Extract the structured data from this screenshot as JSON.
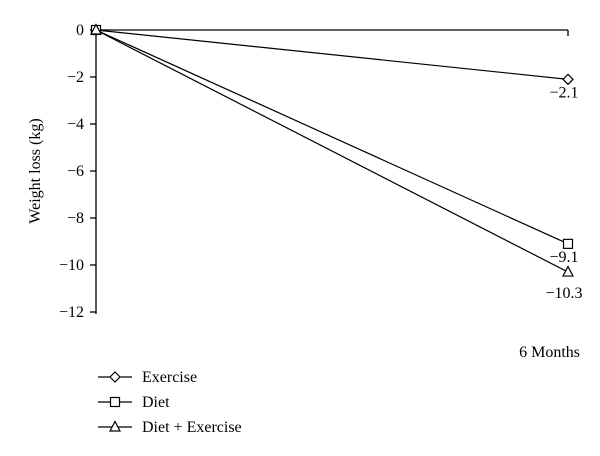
{
  "chart_data": {
    "type": "line",
    "ylabel": "Weight loss (kg)",
    "xlabel": "6 Months",
    "ylim": [
      -12,
      0
    ],
    "yticks": [
      "0",
      "−2",
      "−4",
      "−6",
      "−8",
      "−10",
      "−12"
    ],
    "x": [
      "0",
      "6 Months"
    ],
    "legend_position": "bottom-left",
    "grid": false,
    "series": [
      {
        "name": "Exercise",
        "marker": "diamond",
        "values": [
          0,
          -2.1
        ],
        "end_label": "−2.1"
      },
      {
        "name": "Diet",
        "marker": "square",
        "values": [
          0,
          -9.1
        ],
        "end_label": "−9.1"
      },
      {
        "name": "Diet + Exercise",
        "marker": "triangle",
        "values": [
          0,
          -10.3
        ],
        "end_label": "−10.3"
      }
    ]
  }
}
